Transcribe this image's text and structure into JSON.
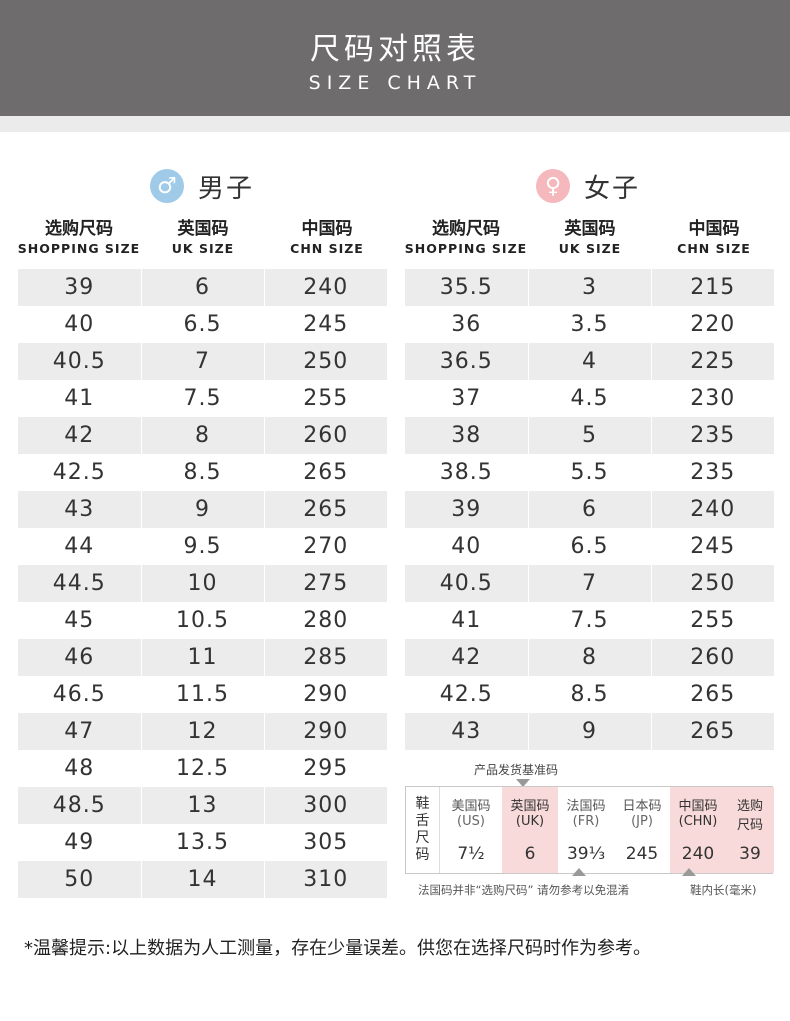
{
  "header": {
    "title": "尺码对照表",
    "subtitle": "SIZE CHART"
  },
  "male": {
    "icon": "male-symbol-icon",
    "symbol": "♂",
    "label": "男子",
    "columns": [
      {
        "cn": "选购尺码",
        "en": "SHOPPING SIZE"
      },
      {
        "cn": "英国码",
        "en": "UK SIZE"
      },
      {
        "cn": "中国码",
        "en": "CHN SIZE"
      }
    ],
    "rows": [
      [
        "39",
        "6",
        "240"
      ],
      [
        "40",
        "6.5",
        "245"
      ],
      [
        "40.5",
        "7",
        "250"
      ],
      [
        "41",
        "7.5",
        "255"
      ],
      [
        "42",
        "8",
        "260"
      ],
      [
        "42.5",
        "8.5",
        "265"
      ],
      [
        "43",
        "9",
        "265"
      ],
      [
        "44",
        "9.5",
        "270"
      ],
      [
        "44.5",
        "10",
        "275"
      ],
      [
        "45",
        "10.5",
        "280"
      ],
      [
        "46",
        "11",
        "285"
      ],
      [
        "46.5",
        "11.5",
        "290"
      ],
      [
        "47",
        "12",
        "290"
      ],
      [
        "48",
        "12.5",
        "295"
      ],
      [
        "48.5",
        "13",
        "300"
      ],
      [
        "49",
        "13.5",
        "305"
      ],
      [
        "50",
        "14",
        "310"
      ]
    ]
  },
  "female": {
    "icon": "female-symbol-icon",
    "symbol": "♀",
    "label": "女子",
    "columns": [
      {
        "cn": "选购尺码",
        "en": "SHOPPING SIZE"
      },
      {
        "cn": "英国码",
        "en": "UK SIZE"
      },
      {
        "cn": "中国码",
        "en": "CHN SIZE"
      }
    ],
    "rows": [
      [
        "35.5",
        "3",
        "215"
      ],
      [
        "36",
        "3.5",
        "220"
      ],
      [
        "36.5",
        "4",
        "225"
      ],
      [
        "37",
        "4.5",
        "230"
      ],
      [
        "38",
        "5",
        "235"
      ],
      [
        "38.5",
        "5.5",
        "235"
      ],
      [
        "39",
        "6",
        "240"
      ],
      [
        "40",
        "6.5",
        "245"
      ],
      [
        "40.5",
        "7",
        "250"
      ],
      [
        "41",
        "7.5",
        "255"
      ],
      [
        "42",
        "8",
        "260"
      ],
      [
        "42.5",
        "8.5",
        "265"
      ],
      [
        "43",
        "9",
        "265"
      ]
    ]
  },
  "reference": {
    "title": "产品发货基准码",
    "side_label": [
      "鞋",
      "舌",
      "尺",
      "码"
    ],
    "columns": [
      {
        "h1": "美国码",
        "h2": "(US)",
        "value": "7½",
        "highlight": false
      },
      {
        "h1": "英国码",
        "h2": "(UK)",
        "value": "6",
        "highlight": true
      },
      {
        "h1": "法国码",
        "h2": "(FR)",
        "value": "39⅓",
        "highlight": false
      },
      {
        "h1": "日本码",
        "h2": "(JP)",
        "value": "245",
        "highlight": false
      },
      {
        "h1": "中国码",
        "h2": "(CHN)",
        "value": "240",
        "highlight": true
      },
      {
        "h1": "选购",
        "h2": "尺码",
        "value": "39",
        "highlight": true
      }
    ],
    "note": "法国码并非“选购尺码” 请勿参考以免混淆",
    "unit": "鞋内长(毫米)",
    "colors": {
      "highlight": "#f8dada",
      "border": "#c9c9c9"
    }
  },
  "footer_note": "*温馨提示:以上数据为人工测量，存在少量误差。供您在选择尺码时作为参考。",
  "colors": {
    "header_bg": "#6e6c6d",
    "male_accent": "#9fcbe8",
    "female_accent": "#f4b8bd",
    "stripe": "#ececec"
  }
}
